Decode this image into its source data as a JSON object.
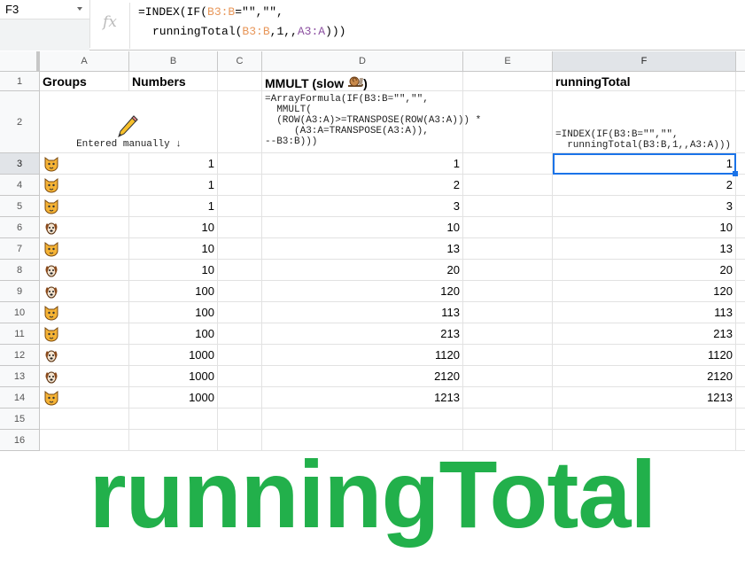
{
  "formula_bar": {
    "cell_ref": "F3",
    "fx_label": "fx",
    "line1_parts": [
      "=INDEX(IF(",
      "B3:B",
      "=\"\",\"\","
    ],
    "line2_parts": [
      "runningTotal(",
      "B3:B",
      ",1,,",
      "A3:A",
      ")))"
    ]
  },
  "columns": [
    "A",
    "B",
    "C",
    "D",
    "E",
    "F"
  ],
  "selected_column": "F",
  "row_numbers": [
    "1",
    "2",
    "3",
    "4",
    "5",
    "6",
    "7",
    "8",
    "9",
    "10",
    "11",
    "12",
    "13",
    "14",
    "15",
    "16"
  ],
  "row1": {
    "A": "Groups",
    "B": "Numbers",
    "D": "MMULT (slow",
    "D_suffix": ")",
    "F": "runningTotal"
  },
  "row2": {
    "A": "Entered manually ↓",
    "D": "=ArrayFormula(IF(B3:B=\"\",\"\",\n  MMULT(\n  (ROW(A3:A)>=TRANSPOSE(ROW(A3:A))) *\n     (A3:A=TRANSPOSE(A3:A)),\n--B3:B)))",
    "F": "=INDEX(IF(B3:B=\"\",\"\",\n  runningTotal(B3:B,1,,A3:A)))"
  },
  "icons": {
    "pencil": "pencil-icon",
    "snail": "snail-icon",
    "cat": "cat-face-icon",
    "dog": "dog-face-icon"
  },
  "rows": [
    {
      "group": "cat",
      "B": "1",
      "D": "1",
      "F": "1"
    },
    {
      "group": "cat",
      "B": "1",
      "D": "2",
      "F": "2"
    },
    {
      "group": "cat",
      "B": "1",
      "D": "3",
      "F": "3"
    },
    {
      "group": "dog",
      "B": "10",
      "D": "10",
      "F": "10"
    },
    {
      "group": "cat",
      "B": "10",
      "D": "13",
      "F": "13"
    },
    {
      "group": "dog",
      "B": "10",
      "D": "20",
      "F": "20"
    },
    {
      "group": "dog",
      "B": "100",
      "D": "120",
      "F": "120"
    },
    {
      "group": "cat",
      "B": "100",
      "D": "113",
      "F": "113"
    },
    {
      "group": "cat",
      "B": "100",
      "D": "213",
      "F": "213"
    },
    {
      "group": "dog",
      "B": "1000",
      "D": "1120",
      "F": "1120"
    },
    {
      "group": "dog",
      "B": "1000",
      "D": "2120",
      "F": "2120"
    },
    {
      "group": "cat",
      "B": "1000",
      "D": "1213",
      "F": "1213"
    }
  ],
  "banner": "runningTotal",
  "colors": {
    "banner": "#22b04b",
    "selection": "#1a73e8",
    "range_b": "#e8975a",
    "range_a": "#8b4fa0"
  }
}
